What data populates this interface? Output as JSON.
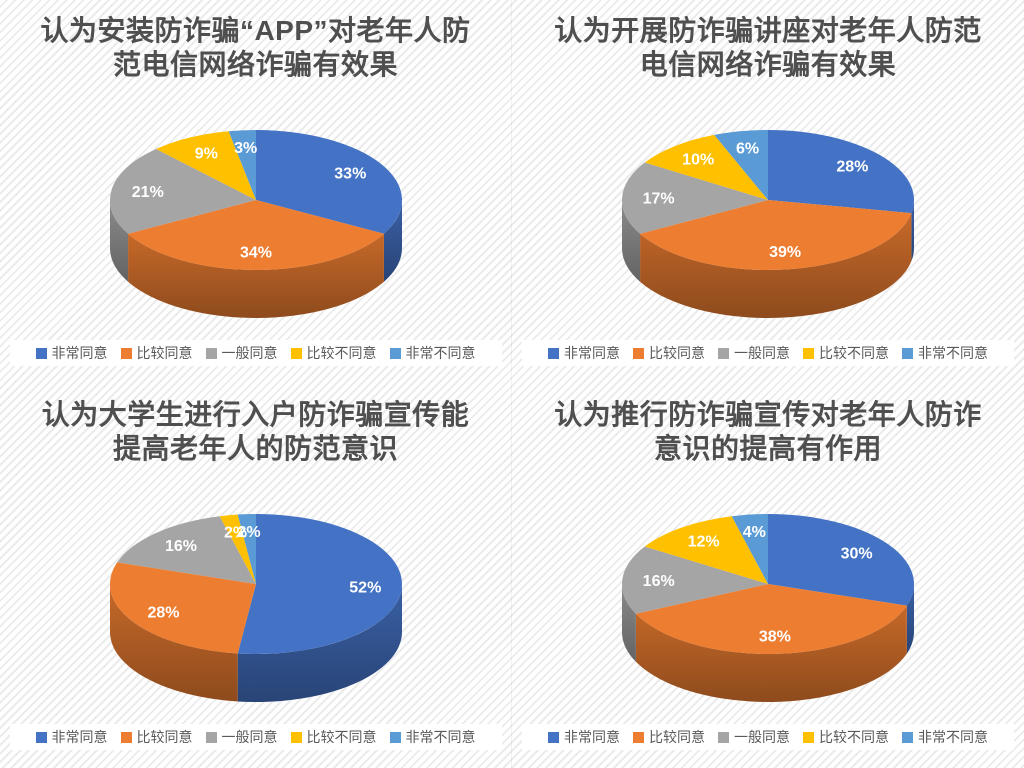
{
  "page": {
    "background": {
      "base_color": "#ffffff",
      "stripe_color": "#ebebeb"
    },
    "layout": "2x2-pie-chart-grid"
  },
  "shared": {
    "legend_labels": [
      "非常同意",
      "比较同意",
      "一般同意",
      "比较不同意",
      "非常不同意"
    ],
    "series_colors": [
      "#4472C4",
      "#ED7D31",
      "#A5A5A5",
      "#FFC000",
      "#5B9BD5"
    ],
    "title_color": "#4f4f4f",
    "legend_text_color": "#595959",
    "data_label_color": "#ffffff"
  },
  "chart_data": [
    {
      "type": "pie",
      "style": "3d",
      "legend_position": "bottom",
      "title": "认为安装防诈骗“APP”对老年人防范电信网络诈骗有效果",
      "title_lines": [
        "认为安装防诈骗“APP”对老年人防",
        "范电信网络诈骗有效果"
      ],
      "categories": [
        "非常同意",
        "比较同意",
        "一般同意",
        "比较不同意",
        "非常不同意"
      ],
      "values": [
        33,
        34,
        21,
        9,
        3
      ],
      "data_labels": [
        "33%",
        "34%",
        "21%",
        "9%",
        "3%"
      ],
      "colors": [
        "#4472C4",
        "#ED7D31",
        "#A5A5A5",
        "#FFC000",
        "#5B9BD5"
      ]
    },
    {
      "type": "pie",
      "style": "3d",
      "legend_position": "bottom",
      "title": "认为开展防诈骗讲座对老年人防范电信网络诈骗有效果",
      "title_lines": [
        "认为开展防诈骗讲座对老年人防范",
        "电信网络诈骗有效果"
      ],
      "categories": [
        "非常同意",
        "比较同意",
        "一般同意",
        "比较不同意",
        "非常不同意"
      ],
      "values": [
        28,
        39,
        17,
        10,
        6
      ],
      "data_labels": [
        "28%",
        "39%",
        "17%",
        "10%",
        "6%"
      ],
      "colors": [
        "#4472C4",
        "#ED7D31",
        "#A5A5A5",
        "#FFC000",
        "#5B9BD5"
      ]
    },
    {
      "type": "pie",
      "style": "3d",
      "legend_position": "bottom",
      "title": "认为大学生进行入户防诈骗宣传能提高老年人的防范意识",
      "title_lines": [
        "认为大学生进行入户防诈骗宣传能",
        "提高老年人的防范意识"
      ],
      "categories": [
        "非常同意",
        "比较同意",
        "一般同意",
        "比较不同意",
        "非常不同意"
      ],
      "values": [
        52,
        28,
        16,
        2,
        2
      ],
      "data_labels": [
        "52%",
        "28%",
        "16%",
        "2%",
        "2%"
      ],
      "colors": [
        "#4472C4",
        "#ED7D31",
        "#A5A5A5",
        "#FFC000",
        "#5B9BD5"
      ]
    },
    {
      "type": "pie",
      "style": "3d",
      "legend_position": "bottom",
      "title": "认为推行防诈骗宣传对老年人防诈意识的提高有作用",
      "title_lines": [
        "认为推行防诈骗宣传对老年人防诈",
        "意识的提高有作用"
      ],
      "categories": [
        "非常同意",
        "比较同意",
        "一般同意",
        "比较不同意",
        "非常不同意"
      ],
      "values": [
        30,
        38,
        16,
        12,
        4
      ],
      "data_labels": [
        "30%",
        "38%",
        "16%",
        "12%",
        "4%"
      ],
      "colors": [
        "#4472C4",
        "#ED7D31",
        "#A5A5A5",
        "#FFC000",
        "#5B9BD5"
      ]
    }
  ]
}
